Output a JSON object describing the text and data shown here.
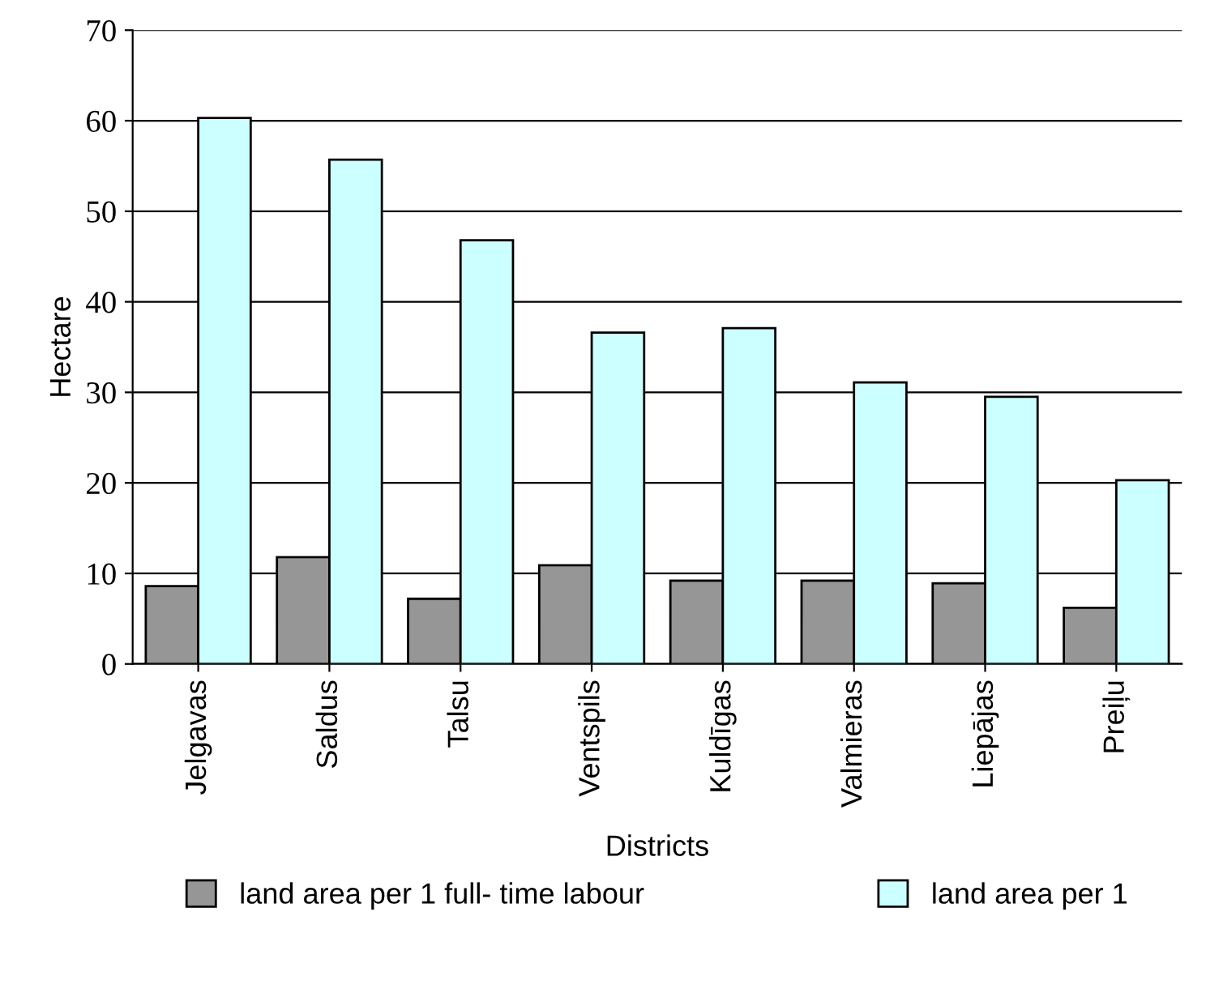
{
  "chart_data": {
    "type": "bar",
    "xlabel": "Districts",
    "ylabel": "Hectare",
    "categories": [
      "Jelgavas",
      "Saldus",
      "Talsu",
      "Ventspils",
      "Kuldīgas",
      "Valmieras",
      "Liepājas",
      "Preiļu"
    ],
    "series": [
      {
        "name": "land area per 1 full- time labour",
        "color": "#969696",
        "values": [
          8.6,
          11.8,
          7.2,
          10.9,
          9.2,
          9.2,
          8.9,
          6.2
        ]
      },
      {
        "name": "land area per 1",
        "color": "#ccffff",
        "values": [
          60.3,
          55.7,
          46.8,
          36.6,
          37.1,
          31.1,
          29.5,
          20.3
        ]
      }
    ],
    "ylim": [
      0,
      70
    ],
    "yticks": [
      0,
      10,
      20,
      30,
      40,
      50,
      60,
      70
    ],
    "grid": "y",
    "legend": "bottom"
  }
}
